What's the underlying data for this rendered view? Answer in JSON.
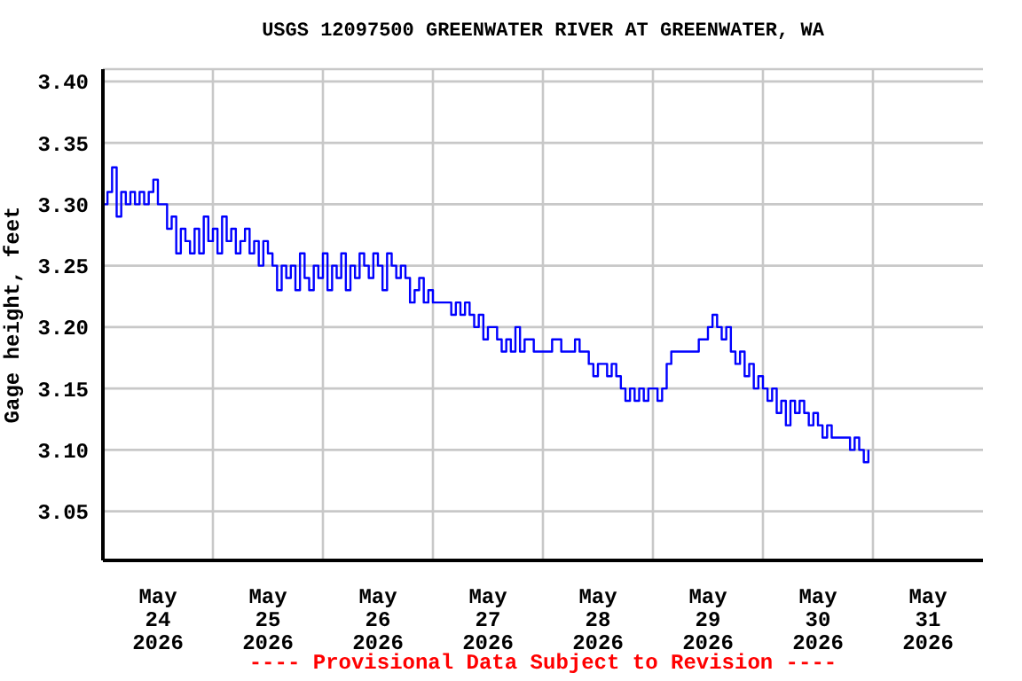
{
  "chart_data": {
    "type": "step",
    "title": "USGS 12097500 GREENWATER RIVER AT GREENWATER, WA",
    "ylabel": "Gage height, feet",
    "annotations": [
      "---- Provisional Data Subject to Revision ----"
    ],
    "xlim": [
      "2026-05-24T00:00",
      "2026-06-01T00:00"
    ],
    "xticks": [
      {
        "value": "2026-05-24T12:00",
        "label": "May 24 2026"
      },
      {
        "value": "2026-05-25T00:00",
        "label": null
      },
      {
        "value": "2026-05-25T12:00",
        "label": "May 25 2026"
      },
      {
        "value": "2026-05-26T00:00",
        "label": null
      },
      {
        "value": "2026-05-26T12:00",
        "label": "May 26 2026"
      },
      {
        "value": "2026-05-27T00:00",
        "label": null
      },
      {
        "value": "2026-05-27T12:00",
        "label": "May 27 2026"
      },
      {
        "value": "2026-05-28T00:00",
        "label": null
      },
      {
        "value": "2026-05-28T12:00",
        "label": "May 28 2026"
      },
      {
        "value": "2026-05-29T00:00",
        "label": null
      },
      {
        "value": "2026-05-29T12:00",
        "label": "May 29 2026"
      },
      {
        "value": "2026-05-30T00:00",
        "label": null
      },
      {
        "value": "2026-05-30T12:00",
        "label": "May 30 2026"
      },
      {
        "value": "2026-05-31T00:00",
        "label": null
      },
      {
        "value": "2026-05-31T12:00",
        "label": "May 31 2026"
      }
    ],
    "ylim": [
      3.01,
      3.41
    ],
    "yticks": [
      {
        "value": 3.05,
        "label": "3.05"
      },
      {
        "value": 3.1,
        "label": "3.10"
      },
      {
        "value": 3.15,
        "label": "3.15"
      },
      {
        "value": 3.2,
        "label": "3.20"
      },
      {
        "value": 3.25,
        "label": "3.25"
      },
      {
        "value": 3.3,
        "label": "3.30"
      },
      {
        "value": 3.35,
        "label": "3.35"
      },
      {
        "value": 3.4,
        "label": "3.40"
      }
    ],
    "grid": true,
    "series": [
      {
        "color": "#0000ff",
        "x": [
          "2026-05-24T00:00",
          "2026-05-24T01:00",
          "2026-05-24T02:00",
          "2026-05-24T03:00",
          "2026-05-24T04:00",
          "2026-05-24T05:00",
          "2026-05-24T06:00",
          "2026-05-24T07:00",
          "2026-05-24T08:00",
          "2026-05-24T09:00",
          "2026-05-24T10:00",
          "2026-05-24T11:00",
          "2026-05-24T12:00",
          "2026-05-24T13:00",
          "2026-05-24T14:00",
          "2026-05-24T15:00",
          "2026-05-24T16:00",
          "2026-05-24T17:00",
          "2026-05-24T18:00",
          "2026-05-24T19:00",
          "2026-05-24T20:00",
          "2026-05-24T21:00",
          "2026-05-24T22:00",
          "2026-05-24T23:00",
          "2026-05-25T00:00",
          "2026-05-25T01:00",
          "2026-05-25T02:00",
          "2026-05-25T03:00",
          "2026-05-25T04:00",
          "2026-05-25T05:00",
          "2026-05-25T06:00",
          "2026-05-25T07:00",
          "2026-05-25T08:00",
          "2026-05-25T09:00",
          "2026-05-25T10:00",
          "2026-05-25T11:00",
          "2026-05-25T12:00",
          "2026-05-25T13:00",
          "2026-05-25T14:00",
          "2026-05-25T15:00",
          "2026-05-25T16:00",
          "2026-05-25T17:00",
          "2026-05-25T18:00",
          "2026-05-25T19:00",
          "2026-05-25T20:00",
          "2026-05-25T21:00",
          "2026-05-25T22:00",
          "2026-05-25T23:00",
          "2026-05-26T00:00",
          "2026-05-26T01:00",
          "2026-05-26T02:00",
          "2026-05-26T03:00",
          "2026-05-26T04:00",
          "2026-05-26T05:00",
          "2026-05-26T06:00",
          "2026-05-26T07:00",
          "2026-05-26T08:00",
          "2026-05-26T09:00",
          "2026-05-26T10:00",
          "2026-05-26T11:00",
          "2026-05-26T12:00",
          "2026-05-26T13:00",
          "2026-05-26T14:00",
          "2026-05-26T15:00",
          "2026-05-26T16:00",
          "2026-05-26T17:00",
          "2026-05-26T18:00",
          "2026-05-26T19:00",
          "2026-05-26T20:00",
          "2026-05-26T21:00",
          "2026-05-26T22:00",
          "2026-05-26T23:00",
          "2026-05-27T00:00",
          "2026-05-27T02:00",
          "2026-05-27T04:00",
          "2026-05-27T05:00",
          "2026-05-27T06:00",
          "2026-05-27T07:00",
          "2026-05-27T08:00",
          "2026-05-27T09:00",
          "2026-05-27T10:00",
          "2026-05-27T11:00",
          "2026-05-27T12:00",
          "2026-05-27T14:00",
          "2026-05-27T15:00",
          "2026-05-27T16:00",
          "2026-05-27T17:00",
          "2026-05-27T18:00",
          "2026-05-27T19:00",
          "2026-05-27T20:00",
          "2026-05-27T22:00",
          "2026-05-28T00:00",
          "2026-05-28T02:00",
          "2026-05-28T04:00",
          "2026-05-28T06:00",
          "2026-05-28T07:00",
          "2026-05-28T08:00",
          "2026-05-28T10:00",
          "2026-05-28T11:00",
          "2026-05-28T12:00",
          "2026-05-28T14:00",
          "2026-05-28T15:00",
          "2026-05-28T16:00",
          "2026-05-28T17:00",
          "2026-05-28T18:00",
          "2026-05-28T19:00",
          "2026-05-28T20:00",
          "2026-05-28T21:00",
          "2026-05-28T22:00",
          "2026-05-28T23:00",
          "2026-05-29T00:00",
          "2026-05-29T01:00",
          "2026-05-29T02:00",
          "2026-05-29T03:00",
          "2026-05-29T04:00",
          "2026-05-29T06:00",
          "2026-05-29T08:00",
          "2026-05-29T10:00",
          "2026-05-29T12:00",
          "2026-05-29T13:00",
          "2026-05-29T14:00",
          "2026-05-29T15:00",
          "2026-05-29T16:00",
          "2026-05-29T17:00",
          "2026-05-29T18:00",
          "2026-05-29T19:00",
          "2026-05-29T20:00",
          "2026-05-29T21:00",
          "2026-05-29T22:00",
          "2026-05-29T23:00",
          "2026-05-30T00:00",
          "2026-05-30T01:00",
          "2026-05-30T02:00",
          "2026-05-30T03:00",
          "2026-05-30T04:00",
          "2026-05-30T05:00",
          "2026-05-30T06:00",
          "2026-05-30T07:00",
          "2026-05-30T08:00",
          "2026-05-30T09:00",
          "2026-05-30T10:00",
          "2026-05-30T11:00",
          "2026-05-30T12:00",
          "2026-05-30T13:00",
          "2026-05-30T14:00",
          "2026-05-30T15:00",
          "2026-05-30T16:00",
          "2026-05-30T18:00",
          "2026-05-30T19:00",
          "2026-05-30T20:00",
          "2026-05-30T21:00",
          "2026-05-30T22:00",
          "2026-05-30T23:00"
        ],
        "values": [
          3.3,
          3.31,
          3.33,
          3.29,
          3.31,
          3.3,
          3.31,
          3.3,
          3.31,
          3.3,
          3.31,
          3.32,
          3.3,
          3.3,
          3.28,
          3.29,
          3.26,
          3.28,
          3.27,
          3.26,
          3.28,
          3.26,
          3.29,
          3.27,
          3.28,
          3.26,
          3.29,
          3.27,
          3.28,
          3.26,
          3.27,
          3.28,
          3.26,
          3.27,
          3.25,
          3.27,
          3.26,
          3.25,
          3.23,
          3.25,
          3.24,
          3.25,
          3.23,
          3.26,
          3.24,
          3.23,
          3.25,
          3.24,
          3.26,
          3.23,
          3.25,
          3.24,
          3.26,
          3.23,
          3.25,
          3.24,
          3.26,
          3.25,
          3.24,
          3.26,
          3.25,
          3.23,
          3.26,
          3.25,
          3.24,
          3.25,
          3.24,
          3.22,
          3.23,
          3.24,
          3.22,
          3.23,
          3.22,
          3.22,
          3.21,
          3.22,
          3.21,
          3.22,
          3.21,
          3.2,
          3.21,
          3.19,
          3.2,
          3.19,
          3.18,
          3.19,
          3.18,
          3.2,
          3.18,
          3.19,
          3.18,
          3.18,
          3.19,
          3.18,
          3.18,
          3.19,
          3.18,
          3.17,
          3.16,
          3.17,
          3.16,
          3.17,
          3.16,
          3.15,
          3.14,
          3.15,
          3.14,
          3.15,
          3.14,
          3.15,
          3.15,
          3.14,
          3.15,
          3.17,
          3.18,
          3.18,
          3.18,
          3.19,
          3.2,
          3.21,
          3.2,
          3.19,
          3.2,
          3.18,
          3.17,
          3.18,
          3.16,
          3.17,
          3.15,
          3.16,
          3.15,
          3.14,
          3.15,
          3.13,
          3.14,
          3.12,
          3.14,
          3.13,
          3.14,
          3.13,
          3.12,
          3.13,
          3.12,
          3.11,
          3.12,
          3.11,
          3.11,
          3.11,
          3.1,
          3.11,
          3.1,
          3.09,
          3.1
        ]
      }
    ]
  }
}
